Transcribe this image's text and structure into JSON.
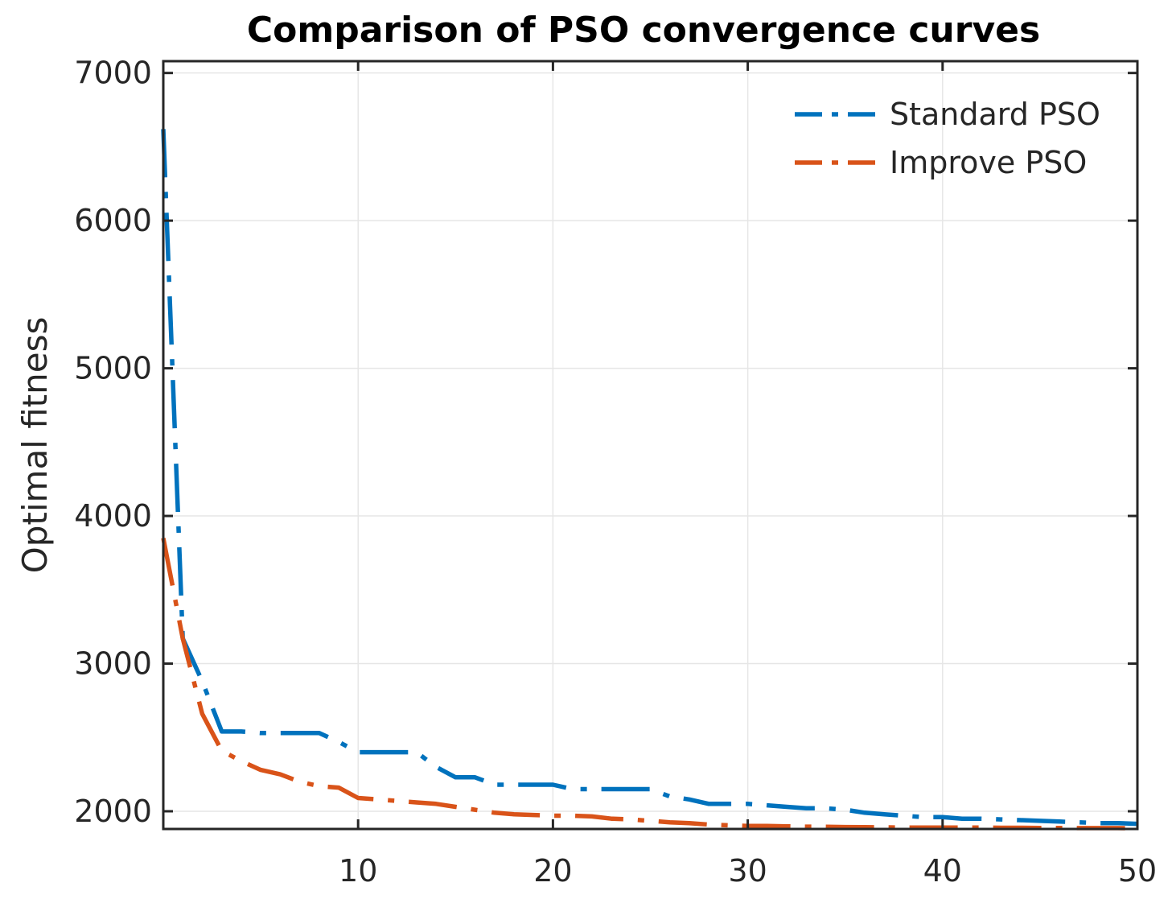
{
  "chart_data": {
    "type": "line",
    "title": "Comparison of PSO convergence curves",
    "xlabel": "",
    "ylabel": "Optimal fitness",
    "xlim": [
      0,
      50
    ],
    "ylim": [
      1880,
      7080
    ],
    "xticks": [
      10,
      20,
      30,
      40,
      50
    ],
    "yticks": [
      2000,
      3000,
      4000,
      5000,
      6000,
      7000
    ],
    "grid": true,
    "legend_position": "top-right",
    "series": [
      {
        "name": "Standard PSO",
        "color": "#0072BD",
        "x": [
          0,
          1,
          2,
          3,
          4,
          5,
          6,
          7,
          8,
          9,
          10,
          11,
          12,
          13,
          14,
          15,
          16,
          17,
          18,
          19,
          20,
          21,
          22,
          23,
          24,
          25,
          26,
          27,
          28,
          29,
          30,
          31,
          32,
          33,
          34,
          35,
          36,
          37,
          38,
          39,
          40,
          41,
          42,
          43,
          44,
          45,
          46,
          47,
          48,
          49,
          50
        ],
        "y": [
          6620,
          3170,
          2880,
          2540,
          2540,
          2530,
          2530,
          2530,
          2530,
          2470,
          2400,
          2400,
          2400,
          2400,
          2300,
          2230,
          2230,
          2180,
          2180,
          2180,
          2180,
          2150,
          2150,
          2150,
          2150,
          2150,
          2100,
          2080,
          2050,
          2050,
          2050,
          2040,
          2030,
          2020,
          2020,
          2010,
          1990,
          1980,
          1970,
          1960,
          1960,
          1950,
          1950,
          1945,
          1940,
          1935,
          1930,
          1925,
          1920,
          1920,
          1915
        ]
      },
      {
        "name": "Improve PSO",
        "color": "#D95319",
        "x": [
          0,
          1,
          2,
          3,
          4,
          5,
          6,
          7,
          8,
          9,
          10,
          11,
          12,
          13,
          14,
          15,
          16,
          17,
          18,
          19,
          20,
          21,
          22,
          23,
          24,
          25,
          26,
          27,
          28,
          29,
          30,
          31,
          32,
          33,
          34,
          35,
          36,
          37,
          38,
          39,
          40,
          41,
          42,
          43,
          44,
          45,
          46,
          47,
          48,
          49,
          50
        ],
        "y": [
          3850,
          3170,
          2660,
          2410,
          2340,
          2280,
          2250,
          2200,
          2170,
          2160,
          2090,
          2080,
          2070,
          2060,
          2050,
          2030,
          2010,
          1990,
          1980,
          1975,
          1970,
          1970,
          1965,
          1950,
          1945,
          1935,
          1925,
          1920,
          1910,
          1905,
          1900,
          1900,
          1898,
          1896,
          1895,
          1893,
          1892,
          1891,
          1890,
          1890,
          1890,
          1889,
          1889,
          1888,
          1888,
          1887,
          1887,
          1886,
          1886,
          1886,
          1885
        ]
      }
    ]
  }
}
